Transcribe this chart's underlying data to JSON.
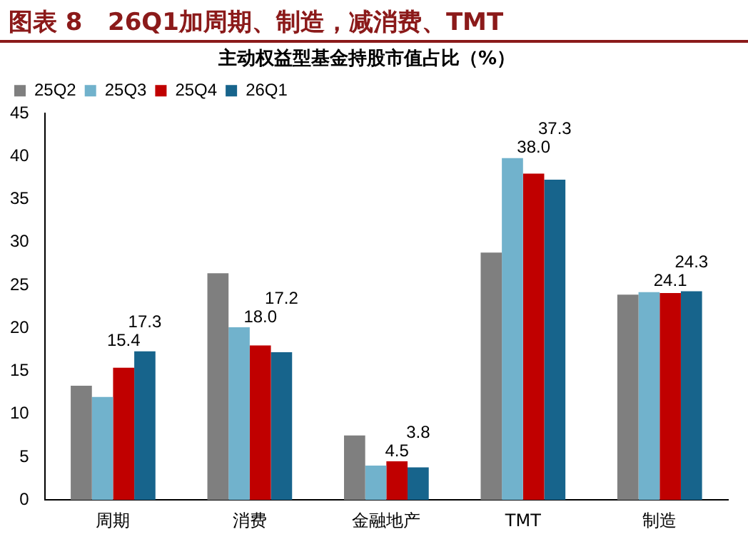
{
  "chart_data": {
    "type": "bar",
    "title": "图表 8   26Q1加周期、制造，减消费、TMT",
    "subtitle": "主动权益型基金持股市值占比（%）",
    "categories": [
      "周期",
      "消费",
      "金融地产",
      "TMT",
      "制造"
    ],
    "series": [
      {
        "name": "25Q2",
        "color": "#7f7f7f",
        "values": [
          13.3,
          26.4,
          7.5,
          28.8,
          23.9
        ]
      },
      {
        "name": "25Q3",
        "color": "#71b2cc",
        "values": [
          12.0,
          20.1,
          4.0,
          39.8,
          24.2
        ]
      },
      {
        "name": "25Q4",
        "color": "#c00000",
        "values": [
          15.4,
          18.0,
          4.5,
          38.0,
          24.1
        ],
        "value_labels": [
          "15.4",
          "18.0",
          "4.5",
          "38.0",
          "24.1"
        ]
      },
      {
        "name": "26Q1",
        "color": "#17648c",
        "values": [
          17.3,
          17.2,
          3.8,
          37.3,
          24.3
        ],
        "value_labels": [
          "17.3",
          "17.2",
          "3.8",
          "37.3",
          "24.3"
        ]
      }
    ],
    "ylim": [
      0,
      45
    ],
    "yticks": [
      0,
      5,
      10,
      15,
      20,
      25,
      30,
      35,
      40,
      45
    ],
    "grid": false,
    "legend": "top"
  }
}
